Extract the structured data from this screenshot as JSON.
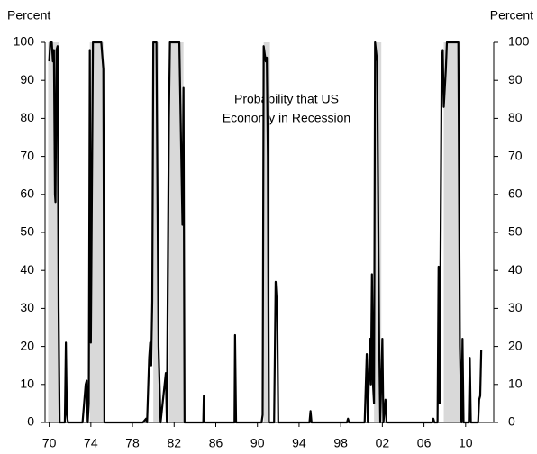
{
  "chart_data": {
    "type": "line",
    "y_label": "Percent",
    "y2_label": "Percent",
    "annotation": [
      "Probability that US",
      "Economy in Recession"
    ],
    "xlim": [
      1969.6,
      2012.7
    ],
    "xticks": [
      {
        "value": 1970,
        "label": "70"
      },
      {
        "value": 1974,
        "label": "74"
      },
      {
        "value": 1978,
        "label": "78"
      },
      {
        "value": 1982,
        "label": "82"
      },
      {
        "value": 1986,
        "label": "86"
      },
      {
        "value": 1990,
        "label": "90"
      },
      {
        "value": 1994,
        "label": "94"
      },
      {
        "value": 1998,
        "label": "98"
      },
      {
        "value": 2002,
        "label": "02"
      },
      {
        "value": 2006,
        "label": "06"
      },
      {
        "value": 2010,
        "label": "10"
      }
    ],
    "ylim": [
      0,
      100
    ],
    "yticks": [
      0,
      10,
      20,
      30,
      40,
      50,
      60,
      70,
      80,
      90,
      100
    ],
    "y2lim": [
      0,
      100
    ],
    "y2ticks": [
      0,
      10,
      20,
      30,
      40,
      50,
      60,
      70,
      80,
      90,
      100
    ],
    "shaded_color": "#d9d9d9",
    "shaded_periods": [
      {
        "start": 1969.9,
        "end": 1970.9
      },
      {
        "start": 1973.9,
        "end": 1975.2
      },
      {
        "start": 1980.0,
        "end": 1980.5
      },
      {
        "start": 1981.5,
        "end": 1982.9
      },
      {
        "start": 1990.6,
        "end": 1991.2
      },
      {
        "start": 2001.2,
        "end": 2001.9
      },
      {
        "start": 2007.9,
        "end": 2009.5
      }
    ],
    "series": [
      {
        "color": "#000000",
        "x": [
          1970.0,
          1970.1,
          1970.25,
          1970.35,
          1970.45,
          1970.55,
          1970.6,
          1970.7,
          1970.8,
          1970.9,
          1971.0,
          1971.5,
          1971.6,
          1971.7,
          1971.8,
          1973.2,
          1973.5,
          1973.6,
          1973.7,
          1973.8,
          1973.9,
          1974.0,
          1974.2,
          1974.5,
          1975.0,
          1975.2,
          1975.3,
          1979.0,
          1979.3,
          1979.4,
          1979.6,
          1979.7,
          1979.8,
          1979.9,
          1980.0,
          1980.3,
          1980.5,
          1980.7,
          1981.2,
          1981.3,
          1981.5,
          1981.6,
          1982.0,
          1982.5,
          1982.8,
          1982.9,
          1983.0,
          1984.8,
          1984.85,
          1984.9,
          1987.8,
          1987.85,
          1987.95,
          1990.4,
          1990.5,
          1990.6,
          1990.8,
          1990.9,
          1991.0,
          1991.1,
          1991.6,
          1991.75,
          1991.9,
          1992.0,
          1995.0,
          1995.1,
          1995.2,
          1998.6,
          1998.7,
          1998.8,
          2000.3,
          2000.5,
          2000.6,
          2000.8,
          2000.9,
          2001.0,
          2001.1,
          2001.2,
          2001.3,
          2001.5,
          2001.7,
          2001.8,
          2002.0,
          2002.1,
          2002.3,
          2002.4,
          2006.8,
          2006.9,
          2007.0,
          2007.3,
          2007.4,
          2007.5,
          2007.7,
          2007.8,
          2007.9,
          2008.1,
          2008.2,
          2009.0,
          2009.3,
          2009.45,
          2009.6,
          2009.7,
          2009.8,
          2010.3,
          2010.4,
          2010.5,
          2011.2,
          2011.3,
          2011.4,
          2011.5
        ],
        "values": [
          95,
          100,
          100,
          95,
          98,
          60,
          58,
          98,
          99,
          30,
          0,
          0,
          21,
          2,
          0,
          0,
          10,
          11,
          0,
          5,
          98,
          21,
          100,
          100,
          100,
          93,
          0,
          0,
          1,
          0,
          17,
          21,
          15,
          32,
          100,
          100,
          20,
          0,
          13,
          0,
          80,
          100,
          100,
          100,
          52,
          88,
          0,
          0,
          7,
          0,
          0,
          23,
          0,
          0,
          2,
          99,
          95,
          96,
          70,
          0,
          0,
          37,
          30,
          0,
          0,
          3,
          0,
          0,
          1,
          0,
          0,
          18,
          0,
          22,
          10,
          39,
          10,
          5,
          100,
          95,
          20,
          0,
          22,
          0,
          6,
          0,
          0,
          1,
          0,
          0,
          41,
          5,
          95,
          98,
          83,
          93,
          100,
          100,
          100,
          20,
          0,
          22,
          0,
          0,
          17,
          0,
          0,
          6,
          7,
          19
        ]
      }
    ]
  }
}
